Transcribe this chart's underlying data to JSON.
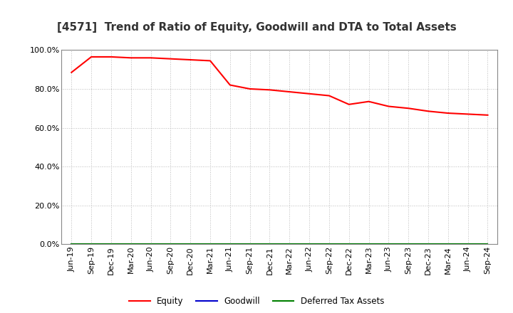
{
  "title": "[4571]  Trend of Ratio of Equity, Goodwill and DTA to Total Assets",
  "x_labels": [
    "Jun-19",
    "Sep-19",
    "Dec-19",
    "Mar-20",
    "Jun-20",
    "Sep-20",
    "Dec-20",
    "Mar-21",
    "Jun-21",
    "Sep-21",
    "Dec-21",
    "Mar-22",
    "Jun-22",
    "Sep-22",
    "Dec-22",
    "Mar-23",
    "Jun-23",
    "Sep-23",
    "Dec-23",
    "Mar-24",
    "Jun-24",
    "Sep-24"
  ],
  "equity": [
    88.5,
    96.5,
    96.5,
    96.0,
    96.0,
    95.5,
    95.0,
    94.5,
    82.0,
    80.0,
    79.5,
    78.5,
    77.5,
    76.5,
    72.0,
    73.5,
    71.0,
    70.0,
    68.5,
    67.5,
    67.0,
    66.5
  ],
  "goodwill": [
    0,
    0,
    0,
    0,
    0,
    0,
    0,
    0,
    0,
    0,
    0,
    0,
    0,
    0,
    0,
    0,
    0,
    0,
    0,
    0,
    0,
    0
  ],
  "deferred_tax_assets": [
    0,
    0,
    0,
    0,
    0,
    0,
    0,
    0,
    0,
    0,
    0,
    0,
    0,
    0,
    0,
    0,
    0,
    0,
    0,
    0,
    0,
    0
  ],
  "equity_color": "#FF0000",
  "goodwill_color": "#0000CC",
  "dta_color": "#008000",
  "ylim": [
    0,
    100
  ],
  "yticks": [
    0,
    20,
    40,
    60,
    80,
    100
  ],
  "background_color": "#FFFFFF",
  "plot_bg_color": "#FFFFFF",
  "grid_color": "#BBBBBB",
  "title_fontsize": 11,
  "tick_fontsize": 8,
  "legend_labels": [
    "Equity",
    "Goodwill",
    "Deferred Tax Assets"
  ]
}
